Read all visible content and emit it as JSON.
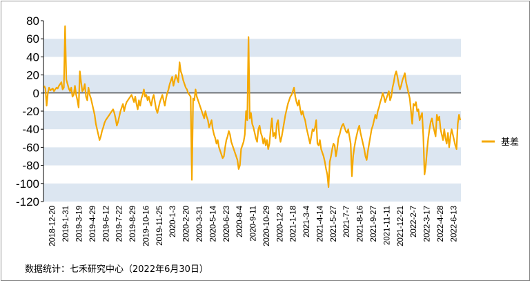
{
  "chart_data": {
    "type": "line",
    "title": "",
    "xlabel": "",
    "ylabel": "",
    "ylim": [
      -120,
      80
    ],
    "yticks": [
      80,
      60,
      40,
      20,
      0,
      -20,
      -40,
      -60,
      -80,
      -100,
      -120
    ],
    "grid": "alternating horizontal bands",
    "legend_position": "right",
    "colors": {
      "series": "#F5A800",
      "band": "#DCE6F1",
      "zero_line": "#000000"
    },
    "x_tick_labels": [
      "2018-12-20",
      "2019-1-31",
      "2019-3-19",
      "2019-4-29",
      "2019-6-12",
      "2019-7-22",
      "2019-8-29",
      "2019-10-16",
      "2019-11-25",
      "2020-1-3",
      "2020-2-20",
      "2020-3-31",
      "2020-5-14",
      "2020-6-23",
      "2020-8-4",
      "2020-9-11",
      "2020-10-29",
      "2020-12-8",
      "2021-1-18",
      "2021-3-4",
      "2021-4-14",
      "2021-5-27",
      "2021-7-7",
      "2021-8-16",
      "2021-9-27",
      "2021-11-11",
      "2021-12-21",
      "2022-2-7",
      "2022-3-17",
      "2022-4-28",
      "2022-6-13"
    ],
    "series": [
      {
        "name": "基差",
        "values": [
          8,
          5,
          -14,
          0,
          6,
          3,
          4,
          5,
          2,
          4,
          6,
          5,
          8,
          10,
          12,
          4,
          6,
          74,
          15,
          10,
          5,
          2,
          6,
          -4,
          -2,
          8,
          -2,
          -8,
          -16,
          24,
          12,
          2,
          4,
          10,
          -4,
          -8,
          6,
          -2,
          -6,
          -12,
          -18,
          -24,
          -34,
          -40,
          -46,
          -52,
          -48,
          -42,
          -38,
          -33,
          -30,
          -28,
          -26,
          -24,
          -22,
          -20,
          -18,
          -22,
          -28,
          -36,
          -32,
          -26,
          -20,
          -16,
          -12,
          -20,
          -14,
          -10,
          -8,
          -6,
          -4,
          -2,
          -6,
          -10,
          -4,
          -12,
          -18,
          -8,
          -14,
          -6,
          -2,
          4,
          -4,
          -2,
          -8,
          -4,
          -10,
          -14,
          -6,
          -2,
          -10,
          -18,
          -22,
          -16,
          -10,
          -6,
          -2,
          -8,
          -14,
          -6,
          0,
          4,
          10,
          14,
          18,
          8,
          14,
          20,
          16,
          12,
          34,
          24,
          20,
          14,
          10,
          6,
          4,
          0,
          -2,
          -4,
          -96,
          -6,
          -8,
          4,
          -4,
          -8,
          -12,
          -16,
          -20,
          -24,
          -28,
          -20,
          -26,
          -30,
          -38,
          -34,
          -30,
          -40,
          -46,
          -50,
          -56,
          -52,
          -60,
          -64,
          -68,
          -72,
          -70,
          -60,
          -52,
          -48,
          -42,
          -46,
          -54,
          -58,
          -62,
          -66,
          -70,
          -74,
          -84,
          -80,
          -62,
          -58,
          -54,
          -46,
          -20,
          -30,
          62,
          -28,
          -22,
          -34,
          -38,
          -44,
          -50,
          -54,
          -40,
          -36,
          -44,
          -48,
          -56,
          -50,
          -58,
          -52,
          -62,
          -56,
          -40,
          -28,
          -48,
          -44,
          -50,
          -34,
          -30,
          -46,
          -54,
          -48,
          -40,
          -32,
          -24,
          -18,
          -12,
          -8,
          -4,
          -2,
          2,
          6,
          -4,
          -10,
          -14,
          -8,
          -18,
          -24,
          -20,
          -26,
          -30,
          -38,
          -44,
          -50,
          -56,
          -48,
          -40,
          -42,
          -38,
          -30,
          -56,
          -58,
          -52,
          -62,
          -66,
          -70,
          -76,
          -84,
          -90,
          -104,
          -76,
          -70,
          -62,
          -56,
          -58,
          -70,
          -62,
          -50,
          -46,
          -40,
          -36,
          -34,
          -38,
          -42,
          -44,
          -40,
          -48,
          -56,
          -92,
          -70,
          -60,
          -52,
          -46,
          -40,
          -36,
          -44,
          -50,
          -56,
          -62,
          -70,
          -74,
          -64,
          -56,
          -48,
          -40,
          -36,
          -30,
          -24,
          -28,
          -20,
          -16,
          -10,
          -6,
          0,
          -4,
          -10,
          -6,
          -2,
          2,
          -8,
          -4,
          6,
          12,
          20,
          24,
          18,
          10,
          4,
          8,
          14,
          18,
          22,
          12,
          6,
          0,
          -6,
          -20,
          -34,
          -12,
          -14,
          -10,
          -20,
          -18,
          -30,
          -26,
          -22,
          -48,
          -90,
          -80,
          -64,
          -50,
          -40,
          -32,
          -28,
          -36,
          -42,
          -48,
          -24,
          -30,
          -26,
          -40,
          -46,
          -52,
          -40,
          -50,
          -56,
          -44,
          -60,
          -48,
          -40,
          -46,
          -52,
          -58,
          -62,
          -34,
          -24,
          -30
        ]
      }
    ],
    "source_note": "数据统计：七禾研究中心（2022年6月30日）"
  }
}
